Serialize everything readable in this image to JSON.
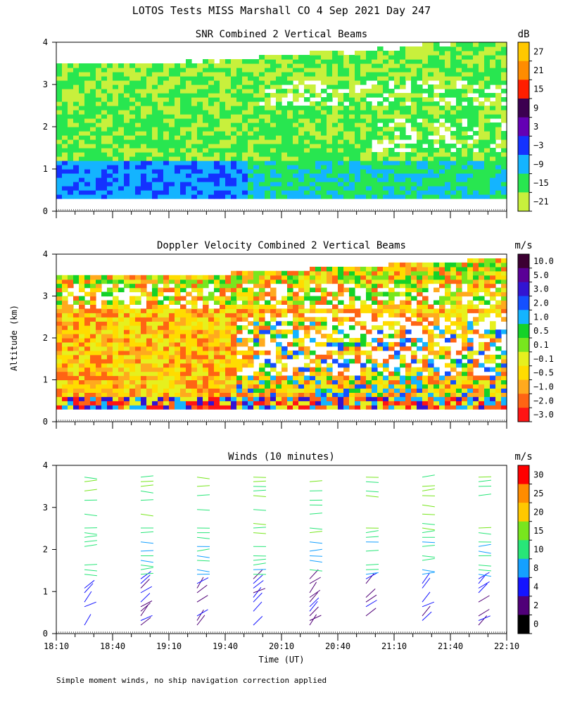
{
  "title": "LOTOS Tests MISS Marshall CO   4 Sep 2021 Day 247",
  "y_axis_label": "Altitude (km)",
  "footnote": "Simple moment winds, no ship navigation correction applied",
  "x_axis": {
    "label": "Time (UT)",
    "ticks": [
      "18:10",
      "18:40",
      "19:10",
      "19:40",
      "20:10",
      "20:40",
      "21:10",
      "21:40",
      "22:10"
    ]
  },
  "chart_data": [
    {
      "type": "heatmap",
      "title": "SNR Combined 2 Vertical Beams",
      "xlabel": "Time (UT)",
      "ylabel": "Altitude (km)",
      "ylim": [
        0,
        4
      ],
      "y_ticks": [
        "0",
        "1",
        "2",
        "3",
        "4"
      ],
      "colorbar": {
        "unit": "dB",
        "labels": [
          "27",
          "21",
          "15",
          "9",
          "3",
          "−3",
          "−9",
          "−15",
          "−21"
        ],
        "colors": [
          "#ffc800",
          "#ff8c00",
          "#ff1e00",
          "#3c0050",
          "#6400b4",
          "#1432ff",
          "#14b4ff",
          "#28e650",
          "#c8f03c"
        ]
      },
      "features": "Echo from about 0.3 km to 3.5 km; strongest SNR near 0.3-1.2 km at 18:10-19:40, weakening with altitude; top of echo rises to about 4 km after 19:40"
    },
    {
      "type": "heatmap",
      "title": "Doppler Velocity Combined 2 Vertical Beams",
      "xlabel": "Time (UT)",
      "ylabel": "Altitude (km)",
      "ylim": [
        0,
        4
      ],
      "y_ticks": [
        "0",
        "1",
        "2",
        "3",
        "4"
      ],
      "colorbar": {
        "unit": "m/s",
        "labels": [
          "10.0",
          "5.0",
          "3.0",
          "2.0",
          "1.0",
          "0.5",
          "0.1",
          "−0.1",
          "−0.5",
          "−1.0",
          "−2.0",
          "−3.0"
        ],
        "colors": [
          "#3c0032",
          "#5a0096",
          "#3214d2",
          "#1450ff",
          "#14b4ff",
          "#14d228",
          "#78e61e",
          "#e6f01e",
          "#ffdc00",
          "#ffaa1e",
          "#ff6414",
          "#ff1414"
        ]
      },
      "features": "Mostly -0.5 to -2.0 m/s (orange/yellow) from 0.5 to 3.5 km, with upward 0.5-2 m/s (green/cyan) regions near 1-2 km after 19:40"
    },
    {
      "type": "scatter",
      "title": "Winds (10 minutes)",
      "xlabel": "Time (UT)",
      "ylabel": "Altitude (km)",
      "ylim": [
        0,
        4
      ],
      "y_ticks": [
        "0",
        "1",
        "2",
        "3",
        "4"
      ],
      "x_profile_times": [
        "18:25",
        "18:55",
        "19:25",
        "19:55",
        "20:25",
        "20:55",
        "21:25",
        "21:55"
      ],
      "colorbar": {
        "unit": "m/s",
        "labels": [
          "30",
          "25",
          "20",
          "15",
          "10",
          "8",
          "4",
          "2",
          "0"
        ],
        "colors": [
          "#ff0000",
          "#ff8c00",
          "#ffc800",
          "#78e61e",
          "#28e678",
          "#14a0ff",
          "#1414ff",
          "#500078",
          "#000000"
        ]
      },
      "features": "Wind barbs at 10-minute profiles; strongest winds 10-15 m/s between 1.5 and 3.8 km, weak 2-8 m/s winds below 1.5 km"
    }
  ]
}
